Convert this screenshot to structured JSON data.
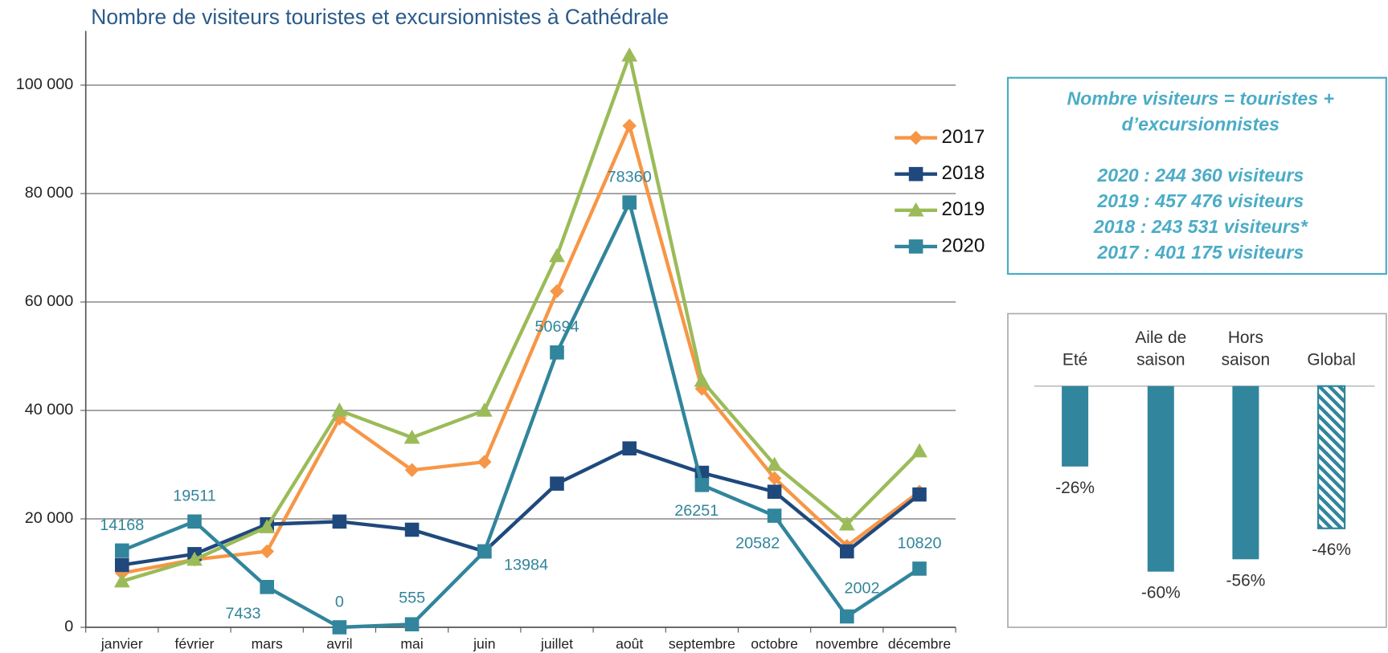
{
  "chart_data": [
    {
      "type": "line",
      "title": "Nombre de visiteurs touristes et excursionnistes à Cathédrale",
      "categories": [
        "janvier",
        "février",
        "mars",
        "avril",
        "mai",
        "juin",
        "juillet",
        "août",
        "septembre",
        "octobre",
        "novembre",
        "décembre"
      ],
      "series": [
        {
          "name": "2017",
          "color": "#f79646",
          "marker": "diamond",
          "values": [
            10000,
            12500,
            14000,
            38500,
            29000,
            30500,
            62000,
            92500,
            44000,
            27500,
            15000,
            25000
          ]
        },
        {
          "name": "2018",
          "color": "#1f497d",
          "marker": "square",
          "values": [
            11500,
            13500,
            19000,
            19500,
            18000,
            14000,
            26500,
            33000,
            28500,
            25000,
            14000,
            24500
          ]
        },
        {
          "name": "2019",
          "color": "#9bbb59",
          "marker": "triangle",
          "values": [
            8500,
            12500,
            18500,
            40000,
            35000,
            40000,
            68500,
            105500,
            45500,
            30000,
            19000,
            32500
          ]
        },
        {
          "name": "2020",
          "color": "#31859c",
          "marker": "square",
          "data_labels": true,
          "values": [
            14168,
            19511,
            7433,
            0,
            555,
            13984,
            50694,
            78360,
            26251,
            20582,
            2002,
            10820
          ]
        }
      ],
      "ylim": [
        0,
        110000
      ],
      "yticks": [
        0,
        {
          "value": 20000,
          "label": "20 000"
        },
        {
          "value": 40000,
          "label": "40 000"
        },
        {
          "value": 60000,
          "label": "60 000"
        },
        {
          "value": 80000,
          "label": "80 000"
        },
        {
          "value": 100000,
          "label": "100 000"
        }
      ],
      "grid": true,
      "legend": "right"
    },
    {
      "type": "bar",
      "categories": [
        "Eté",
        "Aile de saison",
        "Hors saison",
        "Global"
      ],
      "values": [
        -26,
        -60,
        -56,
        -46
      ],
      "value_labels": [
        "-26%",
        "-60%",
        "-56%",
        "-46%"
      ],
      "color": "#31859c",
      "hatched": [
        false,
        false,
        false,
        true
      ],
      "ylim": [
        -78,
        0
      ]
    }
  ],
  "info_box": {
    "lines": [
      "Nombre visiteurs = touristes +",
      "d’excursionnistes",
      "2020 : 244 360 visiteurs",
      "2019 : 457 476  visiteurs",
      "2018 : 243 531 visiteurs*",
      "2017 : 401 175 visiteurs"
    ]
  }
}
